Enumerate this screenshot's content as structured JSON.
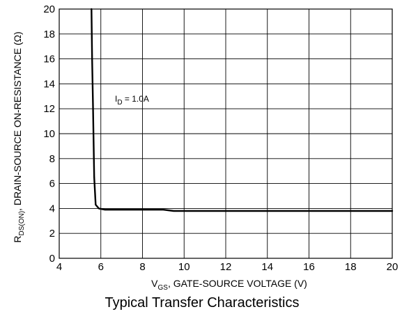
{
  "chart_data": {
    "type": "line",
    "caption": "Typical Transfer Characteristics",
    "xlabel": {
      "symbol": "V",
      "subscript": "GS",
      "text": ", GATE-SOURCE VOLTAGE (V)"
    },
    "ylabel": {
      "symbol": "R",
      "subscript": "DS(ON)",
      "text": ", DRAIN-SOURCE ON-RESISTANCE (Ω)"
    },
    "xlim": [
      4,
      20
    ],
    "ylim": [
      0,
      20
    ],
    "xticks": [
      "4",
      "6",
      "8",
      "10",
      "12",
      "14",
      "16",
      "18",
      "20"
    ],
    "yticks": [
      "0",
      "2",
      "4",
      "6",
      "8",
      "10",
      "12",
      "14",
      "16",
      "18",
      "20"
    ],
    "grid": true,
    "annotation": {
      "symbol": "I",
      "subscript": "D",
      "text": " = 1.0A"
    },
    "series": [
      {
        "x": [
          5.55,
          5.58,
          5.62,
          5.68,
          5.75,
          5.9,
          6.2,
          7,
          8,
          9,
          9.5,
          10,
          12,
          14,
          16,
          18,
          20
        ],
        "y": [
          20,
          16,
          12.5,
          6.5,
          4.3,
          4.0,
          3.9,
          3.9,
          3.9,
          3.9,
          3.8,
          3.8,
          3.8,
          3.8,
          3.8,
          3.8,
          3.8
        ]
      }
    ]
  }
}
